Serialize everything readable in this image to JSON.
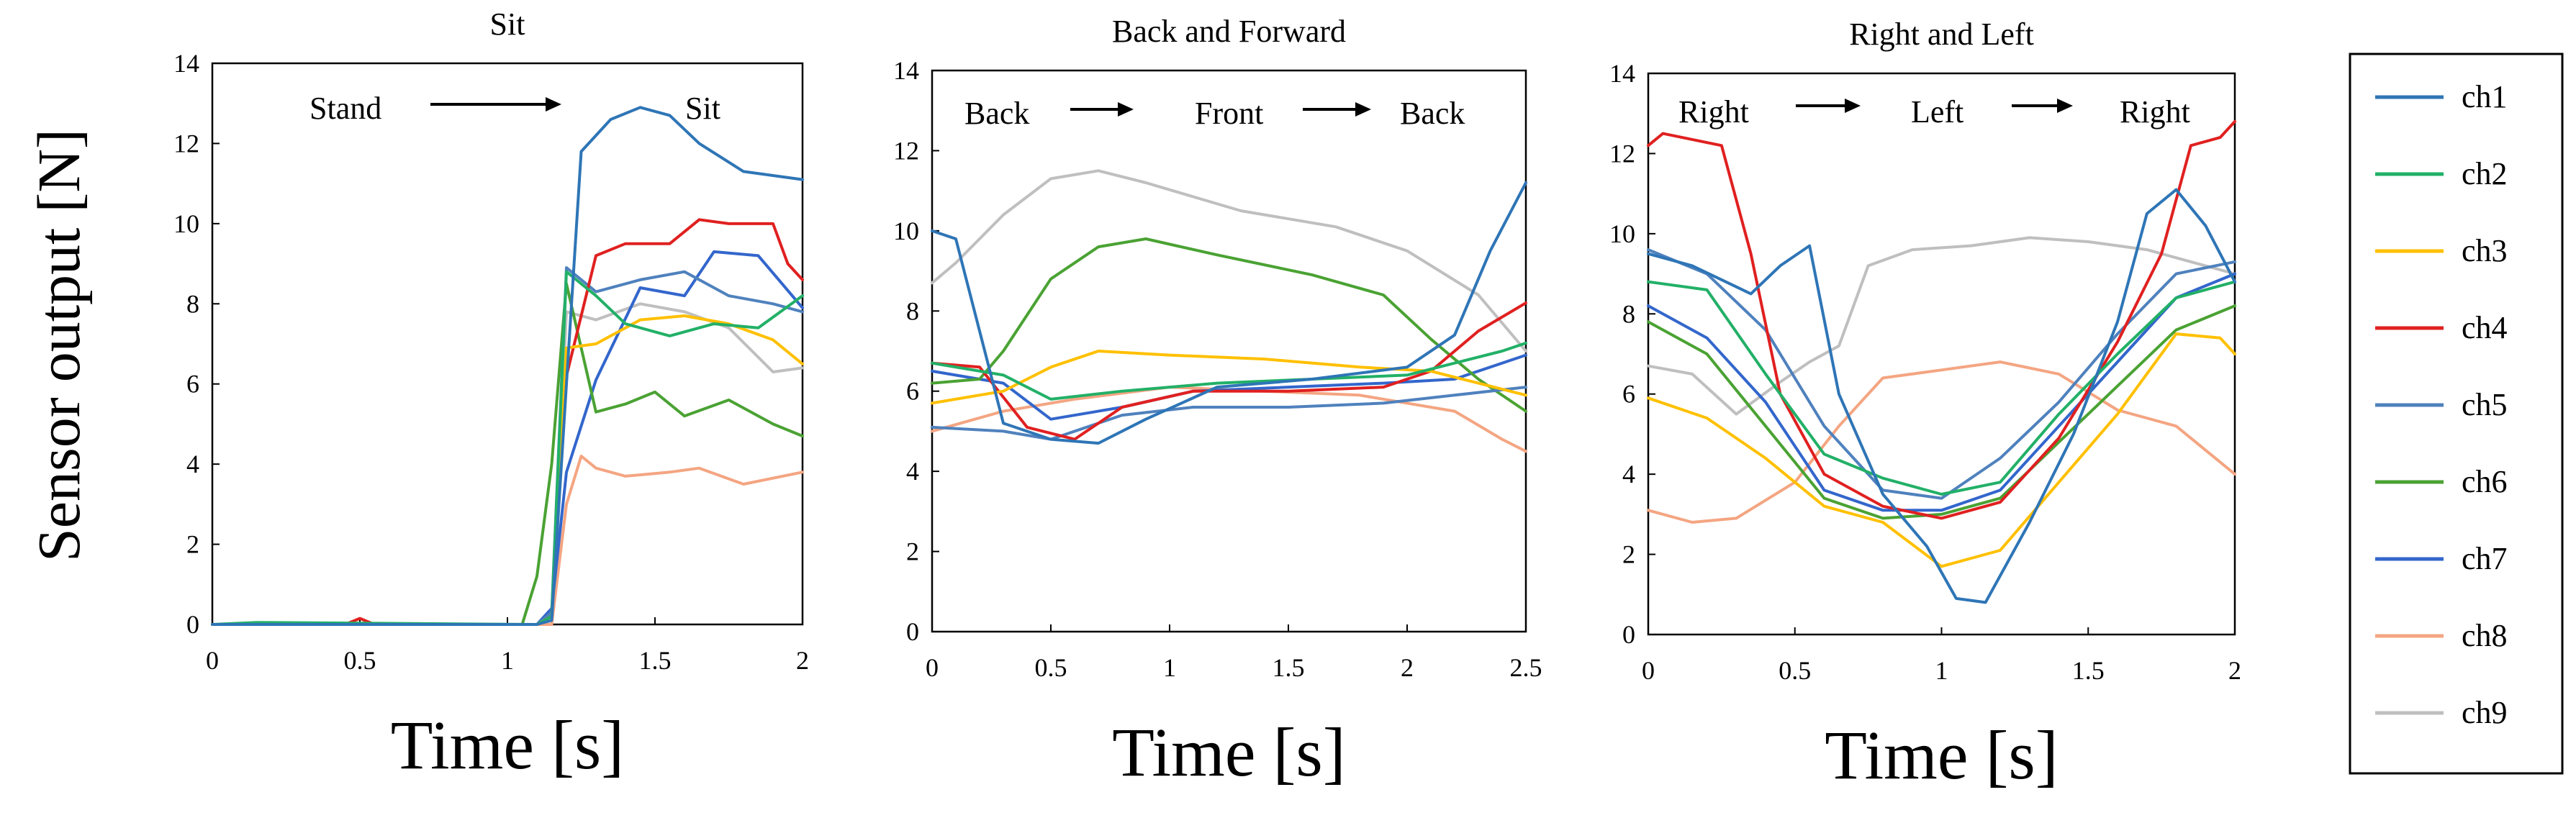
{
  "shared": {
    "ylabel": "Sensor output [N]"
  },
  "chart_data": [
    {
      "type": "line",
      "title": "Sit",
      "xlabel": "Time [s]",
      "ylabel": "Sensor output [N]",
      "xlim": [
        0,
        2
      ],
      "ylim": [
        0,
        14
      ],
      "xticks": [
        0,
        0.5,
        1,
        1.5,
        2
      ],
      "xtick_labels": [
        "0",
        "0.5",
        "1",
        "1.5",
        "2"
      ],
      "yticks": [
        0,
        2,
        4,
        6,
        8,
        10,
        12,
        14
      ],
      "ytick_labels": [
        "0",
        "2",
        "4",
        "6",
        "8",
        "10",
        "12",
        "14"
      ],
      "annotations": [
        "Stand",
        "Sit"
      ],
      "series": [
        {
          "name": "ch1",
          "x": [
            0,
            1.1,
            1.15,
            1.2,
            1.25,
            1.35,
            1.45,
            1.55,
            1.65,
            1.8,
            1.9,
            2.0
          ],
          "values": [
            0,
            0,
            0.1,
            6,
            11.8,
            12.6,
            12.9,
            12.7,
            12,
            11.3,
            11.2,
            11.1
          ]
        },
        {
          "name": "ch2",
          "x": [
            0,
            0.15,
            1.1,
            1.15,
            1.2,
            1.3,
            1.4,
            1.55,
            1.7,
            1.85,
            2.0
          ],
          "values": [
            0,
            0.05,
            0,
            0.2,
            8.8,
            8.2,
            7.5,
            7.2,
            7.5,
            7.4,
            8.2
          ]
        },
        {
          "name": "ch3",
          "x": [
            0,
            1.1,
            1.15,
            1.2,
            1.3,
            1.45,
            1.6,
            1.75,
            1.9,
            2.0
          ],
          "values": [
            0,
            0,
            0.2,
            6.9,
            7,
            7.6,
            7.7,
            7.5,
            7.1,
            6.5
          ]
        },
        {
          "name": "ch4",
          "x": [
            0,
            0.45,
            0.5,
            0.55,
            1.1,
            1.15,
            1.2,
            1.3,
            1.4,
            1.55,
            1.65,
            1.75,
            1.9,
            1.95,
            2.0
          ],
          "values": [
            0,
            0,
            0.15,
            0,
            0,
            0.2,
            6.2,
            9.2,
            9.5,
            9.5,
            10.1,
            10,
            10,
            9,
            8.6
          ]
        },
        {
          "name": "ch5",
          "x": [
            0,
            1.1,
            1.15,
            1.2,
            1.3,
            1.45,
            1.6,
            1.75,
            1.9,
            2.0
          ],
          "values": [
            0,
            0,
            0.3,
            8.9,
            8.3,
            8.6,
            8.8,
            8.2,
            8,
            7.8
          ]
        },
        {
          "name": "ch6",
          "x": [
            0,
            1.05,
            1.1,
            1.15,
            1.2,
            1.3,
            1.4,
            1.5,
            1.6,
            1.75,
            1.9,
            2.0
          ],
          "values": [
            0,
            0,
            1.2,
            4,
            8.5,
            5.3,
            5.5,
            5.8,
            5.2,
            5.6,
            5,
            4.7
          ]
        },
        {
          "name": "ch7",
          "x": [
            0,
            1.1,
            1.15,
            1.2,
            1.3,
            1.45,
            1.6,
            1.7,
            1.85,
            2.0
          ],
          "values": [
            0,
            0,
            0.4,
            3.8,
            6.1,
            8.4,
            8.2,
            9.3,
            9.2,
            7.9
          ]
        },
        {
          "name": "ch8",
          "x": [
            0,
            1.15,
            1.2,
            1.25,
            1.3,
            1.4,
            1.55,
            1.65,
            1.8,
            2.0
          ],
          "values": [
            0,
            0,
            3,
            4.2,
            3.9,
            3.7,
            3.8,
            3.9,
            3.5,
            3.8
          ]
        },
        {
          "name": "ch9",
          "x": [
            0,
            1.1,
            1.15,
            1.2,
            1.3,
            1.45,
            1.6,
            1.75,
            1.9,
            2.0
          ],
          "values": [
            0,
            0,
            0.2,
            7.8,
            7.6,
            8,
            7.8,
            7.4,
            6.3,
            6.4
          ]
        }
      ]
    },
    {
      "type": "line",
      "title": "Back and Forward",
      "xlabel": "Time [s]",
      "ylabel": "Sensor output [N]",
      "xlim": [
        0,
        2.5
      ],
      "ylim": [
        0,
        14
      ],
      "xticks": [
        0,
        0.5,
        1,
        1.5,
        2,
        2.5
      ],
      "xtick_labels": [
        "0",
        "0.5",
        "1",
        "1.5",
        "2",
        "2.5"
      ],
      "yticks": [
        0,
        2,
        4,
        6,
        8,
        10,
        12,
        14
      ],
      "ytick_labels": [
        "0",
        "2",
        "4",
        "6",
        "8",
        "10",
        "12",
        "14"
      ],
      "annotations": [
        "Back",
        "Front",
        "Back"
      ],
      "series": [
        {
          "name": "ch1",
          "x": [
            0,
            0.1,
            0.2,
            0.3,
            0.5,
            0.7,
            0.9,
            1.2,
            1.6,
            2.0,
            2.2,
            2.35,
            2.5
          ],
          "values": [
            10,
            9.8,
            7.5,
            5.2,
            4.8,
            4.7,
            5.3,
            6.1,
            6.3,
            6.6,
            7.4,
            9.5,
            11.2
          ]
        },
        {
          "name": "ch2",
          "x": [
            0,
            0.3,
            0.5,
            0.8,
            1.2,
            1.6,
            2.0,
            2.2,
            2.4,
            2.5
          ],
          "values": [
            6.7,
            6.4,
            5.8,
            6.0,
            6.2,
            6.3,
            6.4,
            6.7,
            7.0,
            7.2
          ]
        },
        {
          "name": "ch3",
          "x": [
            0,
            0.3,
            0.5,
            0.7,
            1.0,
            1.4,
            1.8,
            2.1,
            2.3,
            2.5
          ],
          "values": [
            5.7,
            6.0,
            6.6,
            7.0,
            6.9,
            6.8,
            6.6,
            6.5,
            6.2,
            5.9
          ]
        },
        {
          "name": "ch4",
          "x": [
            0,
            0.2,
            0.4,
            0.6,
            0.8,
            1.1,
            1.5,
            1.9,
            2.1,
            2.3,
            2.5
          ],
          "values": [
            6.7,
            6.6,
            5.1,
            4.8,
            5.6,
            6.0,
            6.0,
            6.1,
            6.5,
            7.5,
            8.2
          ]
        },
        {
          "name": "ch5",
          "x": [
            0,
            0.3,
            0.5,
            0.8,
            1.1,
            1.5,
            1.9,
            2.2,
            2.5
          ],
          "values": [
            5.1,
            5.0,
            4.8,
            5.4,
            5.6,
            5.6,
            5.7,
            5.9,
            6.1
          ]
        },
        {
          "name": "ch6",
          "x": [
            0,
            0.2,
            0.3,
            0.5,
            0.7,
            0.9,
            1.2,
            1.6,
            1.9,
            2.1,
            2.3,
            2.5
          ],
          "values": [
            6.2,
            6.3,
            7.0,
            8.8,
            9.6,
            9.8,
            9.4,
            8.9,
            8.4,
            7.3,
            6.3,
            5.5
          ]
        },
        {
          "name": "ch7",
          "x": [
            0,
            0.3,
            0.5,
            0.8,
            1.1,
            1.5,
            1.9,
            2.2,
            2.5
          ],
          "values": [
            6.5,
            6.2,
            5.3,
            5.6,
            6.0,
            6.1,
            6.2,
            6.3,
            6.9
          ]
        },
        {
          "name": "ch8",
          "x": [
            0,
            0.3,
            0.6,
            1.0,
            1.4,
            1.8,
            2.2,
            2.4,
            2.5
          ],
          "values": [
            5.0,
            5.5,
            5.8,
            6.1,
            6.0,
            5.9,
            5.5,
            4.8,
            4.5
          ]
        },
        {
          "name": "ch9",
          "x": [
            0,
            0.1,
            0.3,
            0.5,
            0.7,
            0.9,
            1.3,
            1.7,
            2.0,
            2.3,
            2.5
          ],
          "values": [
            8.7,
            9.2,
            10.4,
            11.3,
            11.5,
            11.2,
            10.5,
            10.1,
            9.5,
            8.4,
            7.0
          ]
        }
      ]
    },
    {
      "type": "line",
      "title": "Right and Left",
      "xlabel": "Time [s]",
      "ylabel": "Sensor output [N]",
      "xlim": [
        0,
        2
      ],
      "ylim": [
        0,
        14
      ],
      "xticks": [
        0,
        0.5,
        1,
        1.5,
        2
      ],
      "xtick_labels": [
        "0",
        "0.5",
        "1",
        "1.5",
        "2"
      ],
      "yticks": [
        0,
        2,
        4,
        6,
        8,
        10,
        12,
        14
      ],
      "ytick_labels": [
        "0",
        "2",
        "4",
        "6",
        "8",
        "10",
        "12",
        "14"
      ],
      "annotations": [
        "Right",
        "Left",
        "Right"
      ],
      "series": [
        {
          "name": "ch1",
          "x": [
            0,
            0.15,
            0.35,
            0.45,
            0.55,
            0.65,
            0.8,
            0.95,
            1.05,
            1.15,
            1.3,
            1.45,
            1.6,
            1.7,
            1.8,
            1.9,
            2.0
          ],
          "values": [
            9.5,
            9.2,
            8.5,
            9.2,
            9.7,
            6.0,
            3.5,
            2.2,
            0.9,
            0.8,
            2.8,
            5.0,
            7.8,
            10.5,
            11.1,
            10.2,
            8.8
          ]
        },
        {
          "name": "ch2",
          "x": [
            0,
            0.2,
            0.4,
            0.6,
            0.8,
            1.0,
            1.2,
            1.4,
            1.6,
            1.8,
            2.0
          ],
          "values": [
            8.8,
            8.6,
            6.5,
            4.5,
            3.9,
            3.5,
            3.8,
            5.5,
            7.0,
            8.4,
            8.8
          ]
        },
        {
          "name": "ch3",
          "x": [
            0,
            0.2,
            0.4,
            0.6,
            0.8,
            1.0,
            1.2,
            1.4,
            1.6,
            1.8,
            1.95,
            2.0
          ],
          "values": [
            5.9,
            5.4,
            4.4,
            3.2,
            2.8,
            1.7,
            2.1,
            3.8,
            5.5,
            7.5,
            7.4,
            7.0
          ]
        },
        {
          "name": "ch4",
          "x": [
            0,
            0.05,
            0.25,
            0.35,
            0.45,
            0.6,
            0.8,
            1.0,
            1.2,
            1.4,
            1.6,
            1.75,
            1.85,
            1.95,
            2.0
          ],
          "values": [
            12.2,
            12.5,
            12.2,
            9.5,
            6.0,
            4.0,
            3.2,
            2.9,
            3.3,
            4.9,
            7.3,
            9.5,
            12.2,
            12.4,
            12.8
          ]
        },
        {
          "name": "ch5",
          "x": [
            0,
            0.2,
            0.4,
            0.6,
            0.8,
            1.0,
            1.2,
            1.4,
            1.6,
            1.8,
            2.0
          ],
          "values": [
            9.6,
            9.0,
            7.6,
            5.2,
            3.6,
            3.4,
            4.4,
            5.8,
            7.5,
            9.0,
            9.3
          ]
        },
        {
          "name": "ch6",
          "x": [
            0,
            0.2,
            0.4,
            0.6,
            0.8,
            1.0,
            1.2,
            1.4,
            1.6,
            1.8,
            2.0
          ],
          "values": [
            7.8,
            7.0,
            5.2,
            3.4,
            2.9,
            3.0,
            3.4,
            4.8,
            6.2,
            7.6,
            8.2
          ]
        },
        {
          "name": "ch7",
          "x": [
            0,
            0.2,
            0.4,
            0.6,
            0.8,
            1.0,
            1.2,
            1.4,
            1.6,
            1.8,
            2.0
          ],
          "values": [
            8.2,
            7.4,
            5.8,
            3.6,
            3.1,
            3.1,
            3.6,
            5.2,
            6.8,
            8.4,
            9.0
          ]
        },
        {
          "name": "ch8",
          "x": [
            0,
            0.15,
            0.3,
            0.5,
            0.65,
            0.8,
            1.0,
            1.2,
            1.4,
            1.6,
            1.8,
            2.0
          ],
          "values": [
            3.1,
            2.8,
            2.9,
            3.8,
            5.2,
            6.4,
            6.6,
            6.8,
            6.5,
            5.6,
            5.2,
            4.0
          ]
        },
        {
          "name": "ch9",
          "x": [
            0,
            0.15,
            0.3,
            0.45,
            0.55,
            0.65,
            0.75,
            0.9,
            1.1,
            1.3,
            1.5,
            1.7,
            1.85,
            2.0
          ],
          "values": [
            6.7,
            6.5,
            5.5,
            6.3,
            6.8,
            7.2,
            9.2,
            9.6,
            9.7,
            9.9,
            9.8,
            9.6,
            9.3,
            9.0
          ]
        }
      ]
    }
  ],
  "legend": {
    "colors": {
      "ch1": "#2E75B6",
      "ch2": "#22B067",
      "ch3": "#FFC000",
      "ch4": "#E02020",
      "ch5": "#4F81BD",
      "ch6": "#4AA233",
      "ch7": "#3366CC",
      "ch8": "#F4A582",
      "ch9": "#BFBFBF"
    }
  }
}
